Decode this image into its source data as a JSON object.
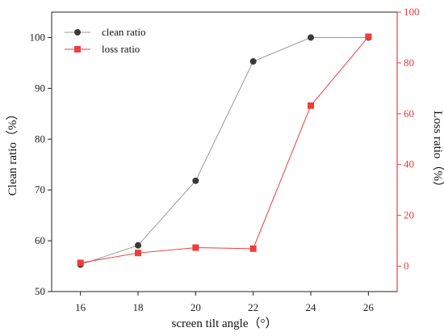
{
  "chart_data": {
    "type": "line",
    "xlabel": "screen tilt angle（°）",
    "ylabel_left": "Clean ratio（%）",
    "ylabel_right": "Loss ratio（%）",
    "x": [
      16,
      18,
      20,
      22,
      24,
      26
    ],
    "xlim": [
      15,
      27
    ],
    "xticks": [
      "16",
      "18",
      "20",
      "22",
      "24",
      "26"
    ],
    "ylim_left": [
      50,
      105
    ],
    "yticks_left": [
      "50",
      "60",
      "70",
      "80",
      "90",
      "100"
    ],
    "ylim_right": [
      -10,
      100
    ],
    "yticks_right": [
      "0",
      "20",
      "40",
      "60",
      "80",
      "100"
    ],
    "grid": false,
    "legend_position": "top-left",
    "series": [
      {
        "name": "clean ratio",
        "axis": "left",
        "marker": "circle",
        "color": "#3a3a3a",
        "line_color": "#9a9a9a",
        "values": [
          55.3,
          59.1,
          71.8,
          95.3,
          100.0,
          100.0
        ]
      },
      {
        "name": "loss ratio",
        "axis": "right",
        "marker": "square",
        "color": "#f03c3c",
        "line_color": "#f03c3c",
        "values": [
          1.3,
          5.2,
          7.3,
          6.9,
          63.2,
          90.3
        ]
      }
    ],
    "colors": {
      "left_axis": "#222222",
      "right_axis": "#f03c3c"
    }
  }
}
